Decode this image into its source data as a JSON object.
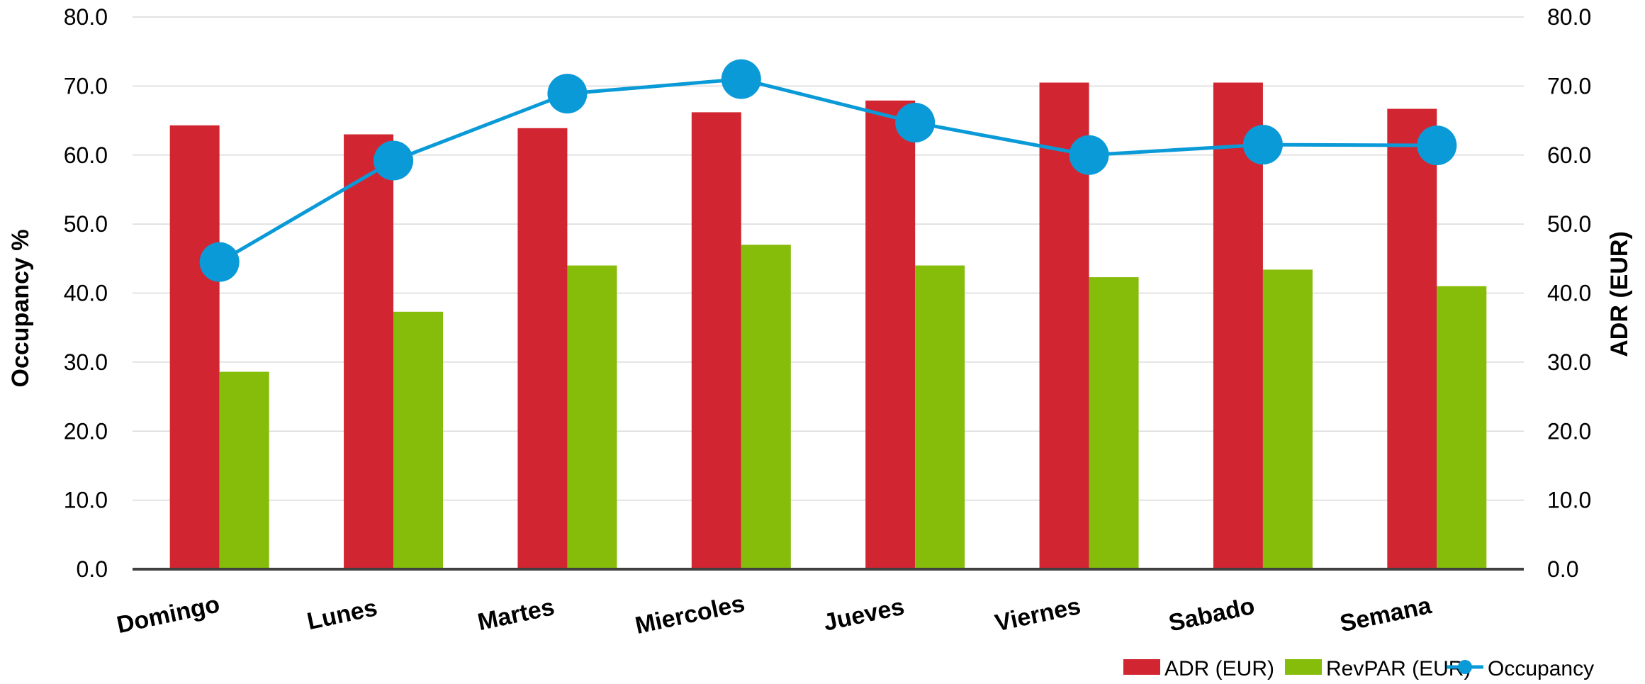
{
  "chart_data": {
    "type": "bar",
    "categories": [
      "Domingo",
      "Lunes",
      "Martes",
      "Miercoles",
      "Jueves",
      "Viernes",
      "Sabado",
      "Semana"
    ],
    "series": [
      {
        "name": "ADR (EUR)",
        "type": "bar",
        "axis": "right",
        "color": "#d12631",
        "values": [
          64.3,
          63.0,
          63.9,
          66.2,
          67.9,
          70.5,
          70.5,
          66.7
        ]
      },
      {
        "name": "RevPAR (EUR)",
        "type": "bar",
        "axis": "right",
        "color": "#86bc0a",
        "values": [
          28.6,
          37.3,
          44.0,
          47.0,
          44.0,
          42.3,
          43.4,
          41.0
        ]
      },
      {
        "name": "Occupancy",
        "type": "line",
        "axis": "left",
        "color": "#0a9ad7",
        "values": [
          44.5,
          59.2,
          68.9,
          71.0,
          64.7,
          60.0,
          61.5,
          61.4
        ]
      }
    ],
    "ylabel": "Occupancy %",
    "y2label": "ADR (EUR)",
    "ylim": [
      0,
      80
    ],
    "y2lim": [
      0,
      80
    ],
    "yticks": [
      "0.0",
      "10.0",
      "20.0",
      "30.0",
      "40.0",
      "50.0",
      "60.0",
      "70.0",
      "80.0"
    ],
    "grid": true,
    "legend": "bottom-right"
  }
}
